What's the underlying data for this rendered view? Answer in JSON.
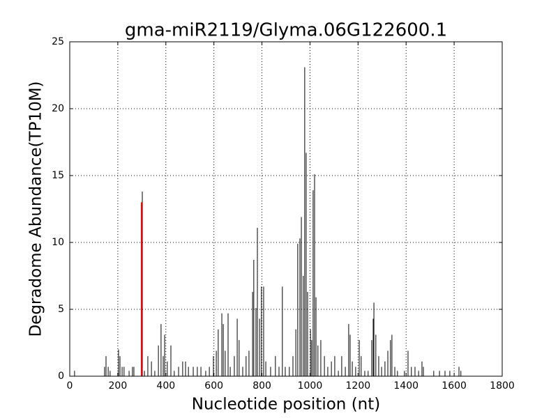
{
  "chart_data": {
    "type": "stem",
    "title": "gma-miR2119/Glyma.06G122600.1",
    "xlabel": "Nucleotide position (nt)",
    "ylabel": "Degradome Abundance(TP10M)",
    "xlim": [
      0,
      1800
    ],
    "xticks": [
      0,
      200,
      400,
      600,
      800,
      1000,
      1200,
      1400,
      1600,
      1800
    ],
    "ylim": [
      0,
      25
    ],
    "yticks": [
      0,
      5,
      10,
      15,
      20,
      25
    ],
    "grid": true,
    "color": "#000000",
    "x": [
      20,
      145,
      151,
      160,
      168,
      203,
      209,
      218,
      226,
      247,
      261,
      267,
      302,
      311,
      325,
      340,
      354,
      369,
      380,
      389,
      395,
      406,
      421,
      435,
      453,
      470,
      482,
      494,
      514,
      531,
      546,
      566,
      581,
      598,
      610,
      618,
      633,
      639,
      647,
      659,
      668,
      685,
      697,
      705,
      720,
      734,
      746,
      761,
      766,
      775,
      781,
      790,
      798,
      807,
      816,
      836,
      856,
      871,
      885,
      897,
      914,
      929,
      941,
      949,
      958,
      964,
      972,
      978,
      984,
      990,
      1002,
      1007,
      1013,
      1019,
      1025,
      1033,
      1045,
      1060,
      1074,
      1089,
      1103,
      1118,
      1132,
      1147,
      1161,
      1167,
      1176,
      1190,
      1205,
      1213,
      1228,
      1242,
      1257,
      1263,
      1266,
      1274,
      1286,
      1298,
      1312,
      1324,
      1335,
      1341,
      1353,
      1364,
      1393,
      1408,
      1422,
      1437,
      1452,
      1466,
      1472,
      1515,
      1539,
      1562,
      1582,
      1620,
      1628
    ],
    "values": [
      0.4,
      0.7,
      1.5,
      0.7,
      0.4,
      2.0,
      1.5,
      0.7,
      0.7,
      0.4,
      0.7,
      0.7,
      13.8,
      0.4,
      1.5,
      1.1,
      0.4,
      2.3,
      3.9,
      1.5,
      3.1,
      1.1,
      2.3,
      0.4,
      0.7,
      1.1,
      1.1,
      0.7,
      0.7,
      0.7,
      0.7,
      0.4,
      0.7,
      1.5,
      1.9,
      3.5,
      4.7,
      3.9,
      1.9,
      4.7,
      0.7,
      1.5,
      4.3,
      2.7,
      0.7,
      1.5,
      1.9,
      6.3,
      8.7,
      5.1,
      11.1,
      4.3,
      6.7,
      6.7,
      1.1,
      0.7,
      1.5,
      0.7,
      6.7,
      0.7,
      0.7,
      1.5,
      3.5,
      9.9,
      10.3,
      11.9,
      7.5,
      23.1,
      16.7,
      6.3,
      3.5,
      2.7,
      13.9,
      15.1,
      5.9,
      2.3,
      2.7,
      1.5,
      0.7,
      1.1,
      1.5,
      0.4,
      1.5,
      0.7,
      3.9,
      3.1,
      1.1,
      0.7,
      2.7,
      1.5,
      0.4,
      0.4,
      2.7,
      4.3,
      5.5,
      3.1,
      1.5,
      0.7,
      1.1,
      1.9,
      2.7,
      3.1,
      0.7,
      0.4,
      0.4,
      1.9,
      0.7,
      0.7,
      0.4,
      1.1,
      0.7,
      0.4,
      0.4,
      0.4,
      0.4,
      0.7,
      0.4
    ],
    "highlight": {
      "x": 299,
      "value": 13.0,
      "color": "#ff0000"
    }
  }
}
